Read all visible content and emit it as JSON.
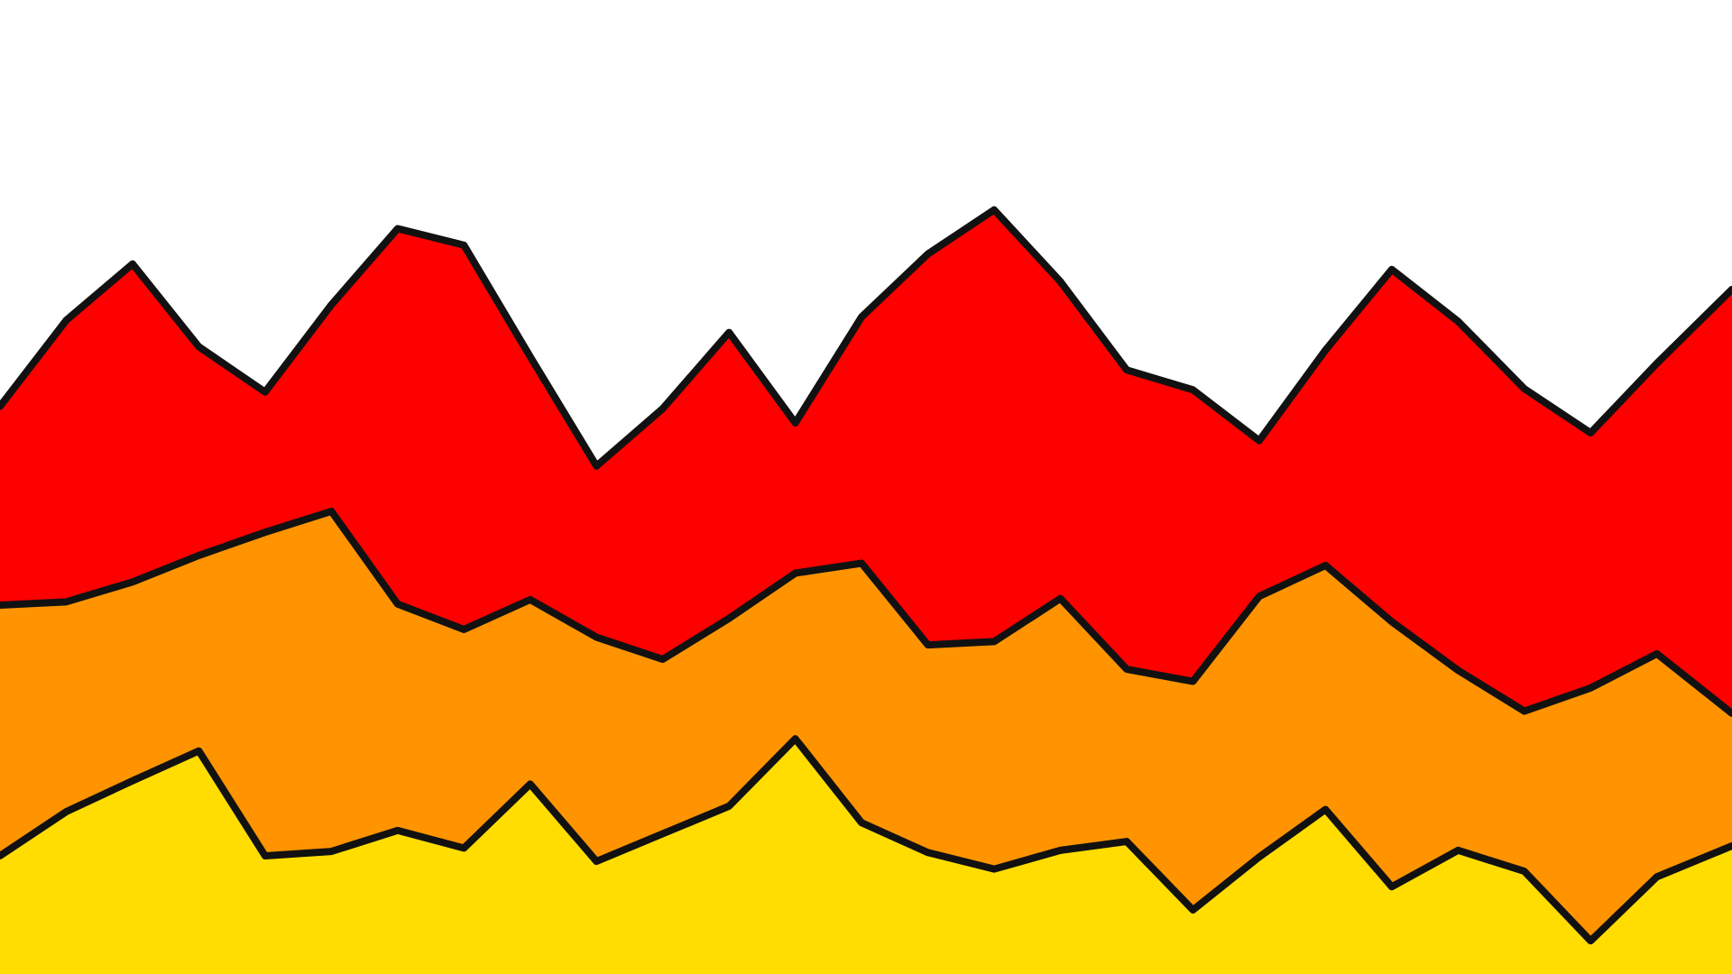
{
  "chart_data": {
    "type": "stacked_area",
    "x": [
      0,
      60,
      120,
      180,
      240,
      300,
      360,
      420,
      480,
      540,
      600,
      660,
      720,
      780,
      840,
      900,
      960,
      1020,
      1080,
      1140,
      1200,
      1260,
      1320,
      1380,
      1440,
      1500,
      1568
    ],
    "xlim": [
      0,
      1568
    ],
    "ylim": [
      0,
      882
    ],
    "stroke": "#111111",
    "series": [
      {
        "color": "#ffdd00",
        "values": [
          107,
          147,
          175,
          202,
          107,
          111,
          130,
          114,
          172,
          102,
          127,
          152,
          213,
          137,
          110,
          95,
          112,
          120,
          58,
          106,
          149,
          79,
          112,
          93,
          30,
          88,
          116
        ]
      },
      {
        "color": "#ff9400",
        "values": [
          227,
          190,
          180,
          177,
          293,
          308,
          205,
          198,
          167,
          203,
          158,
          170,
          150,
          235,
          188,
          206,
          228,
          156,
          207,
          236,
          221,
          240,
          163,
          145,
          229,
          202,
          120
        ]
      },
      {
        "color": "#ff0000",
        "values": [
          180,
          255,
          288,
          189,
          127,
          187,
          340,
          348,
          220,
          155,
          227,
          259,
          136,
          223,
          354,
          391,
          287,
          271,
          264,
          141,
          195,
          319,
          316,
          292,
          231,
          263,
          384
        ]
      }
    ]
  }
}
